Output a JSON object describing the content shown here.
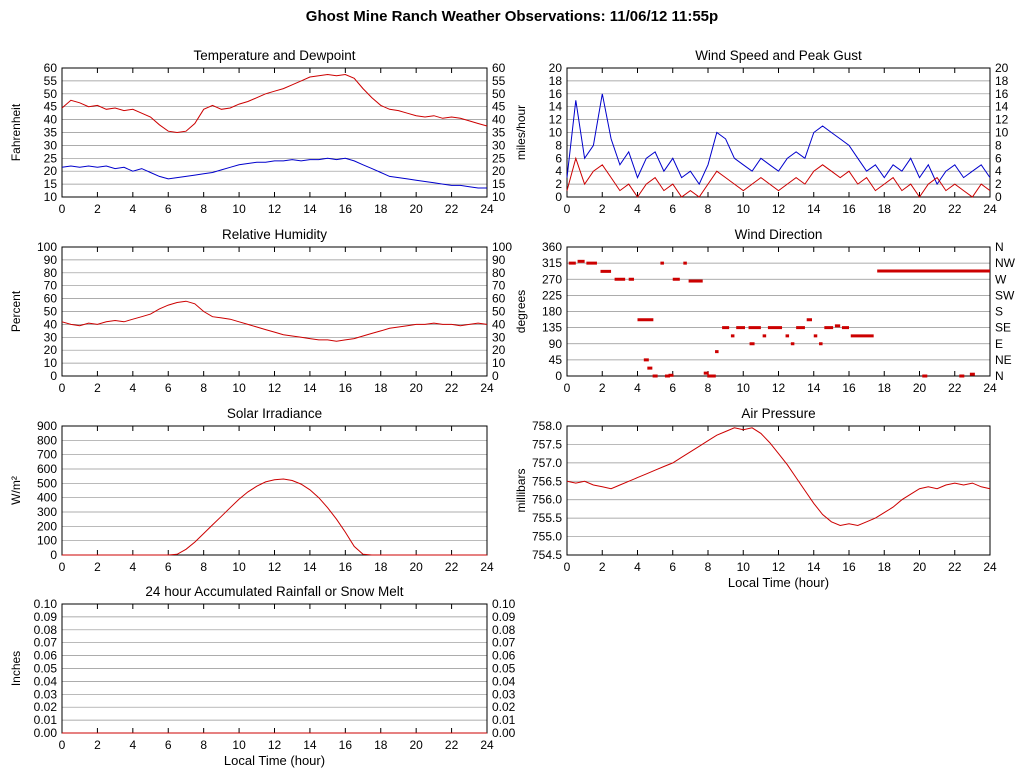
{
  "page_title": "Ghost Mine Ranch Weather Observations: 11/06/12 11:55p",
  "x_axis_label": "Local Time (hour)",
  "colors": {
    "red": "#cc0000",
    "blue": "#0000cc",
    "grid": "#909090",
    "axis": "#000000"
  },
  "chart_data": [
    {
      "id": "temperature-dewpoint",
      "type": "line",
      "title": "Temperature and Dewpoint",
      "ylabel": "Fahrenheit",
      "ylim": [
        10,
        60
      ],
      "yticks": [
        10,
        15,
        20,
        25,
        30,
        35,
        40,
        45,
        50,
        55,
        60
      ],
      "ytick_labels": [
        "10",
        "15",
        "20",
        "25",
        "30",
        "35",
        "40",
        "45",
        "50",
        "55",
        "60"
      ],
      "right_labels": [
        "10",
        "15",
        "20",
        "25",
        "30",
        "35",
        "40",
        "45",
        "50",
        "55",
        "60"
      ],
      "xlim": [
        0,
        24
      ],
      "xticks": [
        0,
        2,
        4,
        6,
        8,
        10,
        12,
        14,
        16,
        18,
        20,
        22,
        24
      ],
      "xlabel": "",
      "grid": true,
      "x_start": 0,
      "x_step": 0.5,
      "series": [
        {
          "name": "Temperature",
          "color": "red",
          "values": [
            44.5,
            47.5,
            46.5,
            45,
            45.5,
            44,
            44.5,
            43.5,
            44,
            42.5,
            41,
            38,
            35.5,
            35,
            35.5,
            38.5,
            44,
            45.5,
            44,
            44.5,
            46,
            47,
            48.5,
            50,
            51,
            52,
            53.5,
            55,
            56.5,
            57,
            57.5,
            57,
            57.5,
            56,
            52,
            48.5,
            45.5,
            44,
            43.5,
            42.5,
            41.5,
            41,
            41.5,
            40.5,
            41,
            40.5,
            39.5,
            38.5,
            37.5
          ]
        },
        {
          "name": "Dewpoint",
          "color": "blue",
          "values": [
            21.5,
            22,
            21.5,
            22,
            21.5,
            22,
            21,
            21.5,
            20,
            21,
            19.5,
            18,
            17,
            17.5,
            18,
            18.5,
            19,
            19.5,
            20.5,
            21.5,
            22.5,
            23,
            23.5,
            23.5,
            24,
            24,
            24.5,
            24,
            24.5,
            24.5,
            25,
            24.5,
            25,
            24,
            22.5,
            21,
            19.5,
            18,
            17.5,
            17,
            16.5,
            16,
            15.5,
            15,
            14.5,
            14.5,
            14,
            13.5,
            13.5
          ]
        }
      ]
    },
    {
      "id": "wind-speed-gust",
      "type": "line",
      "title": "Wind Speed and Peak Gust",
      "ylabel": "miles/hour",
      "ylim": [
        0,
        20
      ],
      "yticks": [
        0,
        2,
        4,
        6,
        8,
        10,
        12,
        14,
        16,
        18,
        20
      ],
      "ytick_labels": [
        "0",
        "2",
        "4",
        "6",
        "8",
        "10",
        "12",
        "14",
        "16",
        "18",
        "20"
      ],
      "right_labels": [
        "0",
        "2",
        "4",
        "6",
        "8",
        "10",
        "12",
        "14",
        "16",
        "18",
        "20"
      ],
      "xlim": [
        0,
        24
      ],
      "xticks": [
        0,
        2,
        4,
        6,
        8,
        10,
        12,
        14,
        16,
        18,
        20,
        22,
        24
      ],
      "xlabel": "",
      "grid": true,
      "x_start": 0,
      "x_step": 0.5,
      "series": [
        {
          "name": "Peak Gust",
          "color": "blue",
          "values": [
            3,
            15,
            6,
            8,
            16,
            9,
            5,
            7,
            3,
            6,
            7,
            4,
            6,
            3,
            4,
            2,
            5,
            10,
            9,
            6,
            5,
            4,
            6,
            5,
            4,
            6,
            7,
            6,
            10,
            11,
            10,
            9,
            8,
            6,
            4,
            5,
            3,
            5,
            4,
            6,
            3,
            5,
            2,
            4,
            5,
            3,
            4,
            5,
            3
          ]
        },
        {
          "name": "Wind Speed",
          "color": "red",
          "values": [
            1,
            6,
            2,
            4,
            5,
            3,
            1,
            2,
            0,
            2,
            3,
            1,
            2,
            0,
            1,
            0,
            2,
            4,
            3,
            2,
            1,
            2,
            3,
            2,
            1,
            2,
            3,
            2,
            4,
            5,
            4,
            3,
            4,
            2,
            3,
            1,
            2,
            3,
            1,
            2,
            0,
            2,
            3,
            1,
            2,
            1,
            0,
            2,
            1
          ]
        }
      ]
    },
    {
      "id": "relative-humidity",
      "type": "line",
      "title": "Relative Humidity",
      "ylabel": "Percent",
      "ylim": [
        0,
        100
      ],
      "yticks": [
        0,
        10,
        20,
        30,
        40,
        50,
        60,
        70,
        80,
        90,
        100
      ],
      "ytick_labels": [
        "0",
        "10",
        "20",
        "30",
        "40",
        "50",
        "60",
        "70",
        "80",
        "90",
        "100"
      ],
      "right_labels": [
        "0",
        "10",
        "20",
        "30",
        "40",
        "50",
        "60",
        "70",
        "80",
        "90",
        "100"
      ],
      "xlim": [
        0,
        24
      ],
      "xticks": [
        0,
        2,
        4,
        6,
        8,
        10,
        12,
        14,
        16,
        18,
        20,
        22,
        24
      ],
      "xlabel": "",
      "grid": true,
      "x_start": 0,
      "x_step": 0.5,
      "series": [
        {
          "name": "Relative Humidity",
          "color": "red",
          "values": [
            42,
            40,
            39,
            41,
            40,
            42,
            43,
            42,
            44,
            46,
            48,
            52,
            55,
            57,
            58,
            56,
            50,
            46,
            45,
            44,
            42,
            40,
            38,
            36,
            34,
            32,
            31,
            30,
            29,
            28,
            28,
            27,
            28,
            29,
            31,
            33,
            35,
            37,
            38,
            39,
            40,
            40,
            41,
            40,
            40,
            39,
            40,
            41,
            40
          ]
        }
      ]
    },
    {
      "id": "wind-direction",
      "type": "scatter",
      "title": "Wind Direction",
      "ylabel": "degrees",
      "ylim": [
        0,
        360
      ],
      "yticks": [
        0,
        45,
        90,
        135,
        180,
        225,
        270,
        315,
        360
      ],
      "ytick_labels": [
        "0",
        "45",
        "90",
        "135",
        "180",
        "225",
        "270",
        "315",
        "360"
      ],
      "right_labels": [
        "N",
        "NE",
        "E",
        "SE",
        "S",
        "SW",
        "W",
        "NW",
        "N"
      ],
      "xlim": [
        0,
        24
      ],
      "xticks": [
        0,
        2,
        4,
        6,
        8,
        10,
        12,
        14,
        16,
        18,
        20,
        22,
        24
      ],
      "xlabel": "",
      "grid": true,
      "series": [],
      "segments": [
        [
          0.1,
          0.5,
          315
        ],
        [
          0.6,
          1.0,
          320
        ],
        [
          1.1,
          1.7,
          315
        ],
        [
          1.9,
          2.5,
          292
        ],
        [
          2.7,
          3.3,
          270
        ],
        [
          3.5,
          3.8,
          270
        ],
        [
          4.0,
          4.9,
          157
        ],
        [
          5.3,
          5.5,
          315
        ],
        [
          6.0,
          6.4,
          270
        ],
        [
          6.6,
          6.8,
          315
        ],
        [
          6.9,
          7.7,
          265
        ],
        [
          8.4,
          8.6,
          68
        ],
        [
          8.8,
          9.2,
          135
        ],
        [
          9.3,
          9.5,
          112
        ],
        [
          9.6,
          10.1,
          135
        ],
        [
          10.3,
          11.0,
          135
        ],
        [
          11.1,
          11.3,
          112
        ],
        [
          11.4,
          12.2,
          135
        ],
        [
          12.4,
          12.6,
          112
        ],
        [
          12.7,
          12.9,
          90
        ],
        [
          13.0,
          13.5,
          135
        ],
        [
          13.6,
          13.9,
          157
        ],
        [
          14.0,
          14.2,
          112
        ],
        [
          14.3,
          14.5,
          90
        ],
        [
          14.6,
          15.1,
          135
        ],
        [
          15.2,
          15.5,
          140
        ],
        [
          15.6,
          16.0,
          135
        ],
        [
          16.1,
          17.4,
          112
        ],
        [
          17.6,
          24.0,
          293
        ]
      ],
      "points": [
        [
          4.5,
          45
        ],
        [
          4.7,
          22
        ],
        [
          5.0,
          0
        ],
        [
          5.7,
          0
        ],
        [
          5.9,
          2
        ],
        [
          7.9,
          8
        ],
        [
          8.1,
          0
        ],
        [
          8.3,
          0
        ],
        [
          10.5,
          90
        ],
        [
          20.3,
          0
        ],
        [
          22.4,
          0
        ],
        [
          23.0,
          5
        ]
      ],
      "point_color": "red"
    },
    {
      "id": "solar-irradiance",
      "type": "line",
      "title": "Solar Irradiance",
      "ylabel": "W/m²",
      "ylim": [
        0,
        900
      ],
      "yticks": [
        0,
        100,
        200,
        300,
        400,
        500,
        600,
        700,
        800,
        900
      ],
      "ytick_labels": [
        "0",
        "100",
        "200",
        "300",
        "400",
        "500",
        "600",
        "700",
        "800",
        "900"
      ],
      "right_labels": null,
      "xlim": [
        0,
        24
      ],
      "xticks": [
        0,
        2,
        4,
        6,
        8,
        10,
        12,
        14,
        16,
        18,
        20,
        22,
        24
      ],
      "xlabel": "",
      "grid": true,
      "x_start": 0,
      "x_step": 0.5,
      "series": [
        {
          "name": "Solar Irradiance",
          "color": "red",
          "values": [
            0,
            0,
            0,
            0,
            0,
            0,
            0,
            0,
            0,
            0,
            0,
            0,
            0,
            5,
            40,
            90,
            150,
            210,
            270,
            330,
            390,
            440,
            480,
            510,
            525,
            530,
            520,
            495,
            455,
            400,
            330,
            250,
            160,
            60,
            5,
            0,
            0,
            0,
            0,
            0,
            0,
            0,
            0,
            0,
            0,
            0,
            0,
            0,
            0
          ]
        }
      ]
    },
    {
      "id": "air-pressure",
      "type": "line",
      "title": "Air Pressure",
      "ylabel": "millibars",
      "ylim": [
        754.5,
        758.0
      ],
      "yticks": [
        754.5,
        755.0,
        755.5,
        756.0,
        756.5,
        757.0,
        757.5,
        758.0
      ],
      "ytick_labels": [
        "754.5",
        "755.0",
        "755.5",
        "756.0",
        "756.5",
        "757.0",
        "757.5",
        "758.0"
      ],
      "right_labels": null,
      "xlim": [
        0,
        24
      ],
      "xticks": [
        0,
        2,
        4,
        6,
        8,
        10,
        12,
        14,
        16,
        18,
        20,
        22,
        24
      ],
      "xlabel": "Local Time (hour)",
      "grid": true,
      "x_start": 0,
      "x_step": 0.5,
      "series": [
        {
          "name": "Air Pressure",
          "color": "red",
          "values": [
            756.5,
            756.45,
            756.5,
            756.4,
            756.35,
            756.3,
            756.4,
            756.5,
            756.6,
            756.7,
            756.8,
            756.9,
            757.0,
            757.15,
            757.3,
            757.45,
            757.6,
            757.75,
            757.85,
            757.95,
            757.9,
            757.95,
            757.8,
            757.55,
            757.25,
            756.95,
            756.6,
            756.25,
            755.9,
            755.6,
            755.4,
            755.3,
            755.35,
            755.3,
            755.4,
            755.5,
            755.65,
            755.8,
            756.0,
            756.15,
            756.3,
            756.35,
            756.3,
            756.4,
            756.45,
            756.4,
            756.45,
            756.35,
            756.3
          ]
        }
      ]
    },
    {
      "id": "rainfall",
      "type": "line",
      "title": "24 hour Accumulated Rainfall or Snow Melt",
      "ylabel": "Inches",
      "ylim": [
        0,
        0.1
      ],
      "yticks": [
        0,
        0.01,
        0.02,
        0.03,
        0.04,
        0.05,
        0.06,
        0.07,
        0.08,
        0.09,
        0.1
      ],
      "ytick_labels": [
        "0.00",
        "0.01",
        "0.02",
        "0.03",
        "0.04",
        "0.05",
        "0.06",
        "0.07",
        "0.08",
        "0.09",
        "0.10"
      ],
      "right_labels": [
        "0.00",
        "0.01",
        "0.02",
        "0.03",
        "0.04",
        "0.05",
        "0.06",
        "0.07",
        "0.08",
        "0.09",
        "0.10"
      ],
      "xlim": [
        0,
        24
      ],
      "xticks": [
        0,
        2,
        4,
        6,
        8,
        10,
        12,
        14,
        16,
        18,
        20,
        22,
        24
      ],
      "xlabel": "Local Time (hour)",
      "grid": true,
      "x_start": 0,
      "x_step": 0.5,
      "series": [
        {
          "name": "Accumulated Rainfall",
          "color": "red",
          "values": [
            0,
            0,
            0,
            0,
            0,
            0,
            0,
            0,
            0,
            0,
            0,
            0,
            0,
            0,
            0,
            0,
            0,
            0,
            0,
            0,
            0,
            0,
            0,
            0,
            0,
            0,
            0,
            0,
            0,
            0,
            0,
            0,
            0,
            0,
            0,
            0,
            0,
            0,
            0,
            0,
            0,
            0,
            0,
            0,
            0,
            0,
            0,
            0,
            0
          ]
        }
      ]
    }
  ]
}
